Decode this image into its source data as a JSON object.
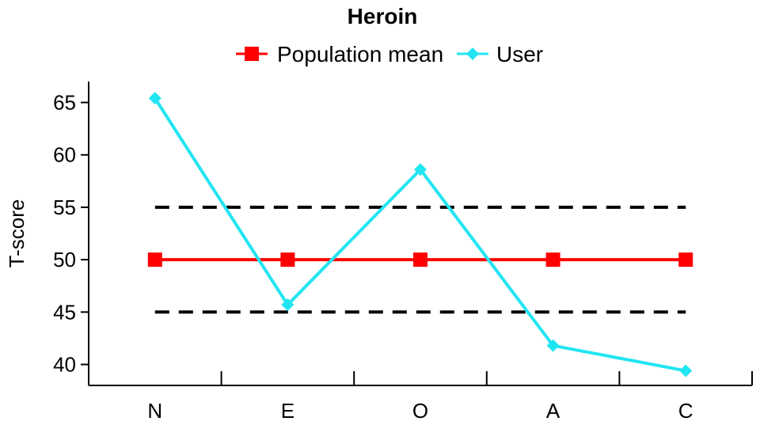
{
  "chart_data": {
    "type": "line",
    "title": "Heroin",
    "xlabel": "",
    "ylabel": "T-score",
    "categories": [
      "N",
      "E",
      "O",
      "A",
      "C"
    ],
    "ylim": [
      38,
      67
    ],
    "yticks": [
      40,
      45,
      50,
      55,
      60,
      65
    ],
    "legend_position": "top",
    "series": [
      {
        "name": "Population mean",
        "values": [
          50,
          50,
          50,
          50,
          50
        ],
        "color": "#ff0000",
        "marker": "square"
      },
      {
        "name": "User",
        "values": [
          65.4,
          45.7,
          58.6,
          41.8,
          39.4
        ],
        "color": "#22e5f2",
        "marker": "diamond"
      }
    ],
    "reference_lines": [
      {
        "y": 55,
        "style": "dashed",
        "color": "#000000"
      },
      {
        "y": 45,
        "style": "dashed",
        "color": "#000000"
      }
    ]
  }
}
